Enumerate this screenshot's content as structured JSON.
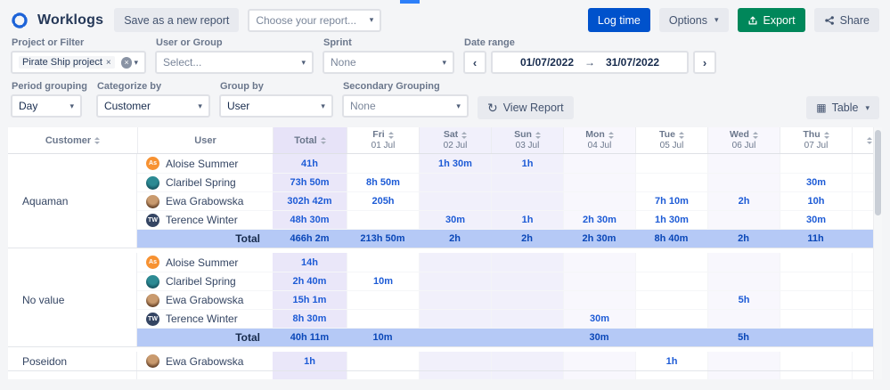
{
  "app": {
    "title": "Worklogs"
  },
  "colors": {
    "accent_blue": "#0052CC",
    "export_green": "#00875A",
    "value_text": "#1D5BD6",
    "total_band": "#B5C9F6",
    "total_column": "#EAE7F9",
    "weekend_column": "#F1F0FB",
    "alt_column": "#F8F7FD",
    "top_indicator": "#2D7FF9"
  },
  "toolbar": {
    "save_report_label": "Save as a new report",
    "report_picker_placeholder": "Choose your report...",
    "log_time_label": "Log time",
    "options_label": "Options",
    "export_label": "Export",
    "share_label": "Share"
  },
  "filters": {
    "project": {
      "label": "Project or Filter",
      "tag": "Pirate Ship project"
    },
    "user_or_group": {
      "label": "User or Group",
      "placeholder": "Select..."
    },
    "sprint": {
      "label": "Sprint",
      "value": "None"
    },
    "date_range": {
      "label": "Date range",
      "from": "01/07/2022",
      "to": "31/07/2022"
    }
  },
  "grouping": {
    "period": {
      "label": "Period grouping",
      "value": "Day"
    },
    "categorize": {
      "label": "Categorize by",
      "value": "Customer"
    },
    "group_by": {
      "label": "Group by",
      "value": "User"
    },
    "secondary": {
      "label": "Secondary Grouping",
      "value": "None"
    },
    "view_report_label": "View Report",
    "view_mode_label": "Table"
  },
  "table": {
    "total_row_label": "Total",
    "columns": {
      "customer": "Customer",
      "user": "User",
      "total": "Total",
      "days": [
        {
          "dow": "Fri",
          "date": "01 Jul",
          "shade": "none"
        },
        {
          "dow": "Sat",
          "date": "02 Jul",
          "shade": "weekend"
        },
        {
          "dow": "Sun",
          "date": "03 Jul",
          "shade": "weekend"
        },
        {
          "dow": "Mon",
          "date": "04 Jul",
          "shade": "alt"
        },
        {
          "dow": "Tue",
          "date": "05 Jul",
          "shade": "none"
        },
        {
          "dow": "Wed",
          "date": "06 Jul",
          "shade": "alt"
        },
        {
          "dow": "Thu",
          "date": "07 Jul",
          "shade": "none"
        }
      ]
    },
    "groups": [
      {
        "customer": "Aquaman",
        "rows": [
          {
            "user": "Aloise Summer",
            "avatar": {
              "label": "As",
              "bg": "#F79232"
            },
            "total": "41h",
            "days": [
              "",
              "1h 30m",
              "1h",
              "",
              "",
              "",
              ""
            ]
          },
          {
            "user": "Claribel Spring",
            "avatar": {
              "label": "",
              "type": "photo",
              "bg": "#2C8A93",
              "bg2": "#14505C"
            },
            "total": "73h 50m",
            "days": [
              "8h 50m",
              "",
              "",
              "",
              "",
              "",
              "30m"
            ]
          },
          {
            "user": "Ewa Grabowska",
            "avatar": {
              "label": "",
              "type": "photo",
              "bg": "#C99A6E",
              "bg2": "#5E3B22"
            },
            "total": "302h 42m",
            "days": [
              "205h",
              "",
              "",
              "",
              "7h 10m",
              "2h",
              "10h"
            ]
          },
          {
            "user": "Terence Winter",
            "avatar": {
              "label": "TW",
              "bg": "#344563"
            },
            "total": "48h 30m",
            "days": [
              "",
              "30m",
              "1h",
              "2h 30m",
              "1h 30m",
              "",
              "30m"
            ]
          }
        ],
        "total": {
          "total": "466h 2m",
          "days": [
            "213h 50m",
            "2h",
            "2h",
            "2h 30m",
            "8h 40m",
            "2h",
            "11h"
          ]
        }
      },
      {
        "customer": "No value",
        "rows": [
          {
            "user": "Aloise Summer",
            "avatar": {
              "label": "As",
              "bg": "#F79232"
            },
            "total": "14h",
            "days": [
              "",
              "",
              "",
              "",
              "",
              "",
              ""
            ]
          },
          {
            "user": "Claribel Spring",
            "avatar": {
              "label": "",
              "type": "photo",
              "bg": "#2C8A93",
              "bg2": "#14505C"
            },
            "total": "2h 40m",
            "days": [
              "10m",
              "",
              "",
              "",
              "",
              "",
              ""
            ]
          },
          {
            "user": "Ewa Grabowska",
            "avatar": {
              "label": "",
              "type": "photo",
              "bg": "#C99A6E",
              "bg2": "#5E3B22"
            },
            "total": "15h 1m",
            "days": [
              "",
              "",
              "",
              "",
              "",
              "5h",
              ""
            ]
          },
          {
            "user": "Terence Winter",
            "avatar": {
              "label": "TW",
              "bg": "#344563"
            },
            "total": "8h 30m",
            "days": [
              "",
              "",
              "",
              "30m",
              "",
              "",
              ""
            ]
          }
        ],
        "total": {
          "total": "40h 11m",
          "days": [
            "10m",
            "",
            "",
            "30m",
            "",
            "5h",
            ""
          ]
        }
      },
      {
        "customer": "Poseidon",
        "rows": [
          {
            "user": "Ewa Grabowska",
            "avatar": {
              "label": "",
              "type": "photo",
              "bg": "#C99A6E",
              "bg2": "#5E3B22"
            },
            "total": "1h",
            "days": [
              "",
              "",
              "",
              "",
              "1h",
              "",
              ""
            ]
          }
        ],
        "total": null
      }
    ]
  }
}
